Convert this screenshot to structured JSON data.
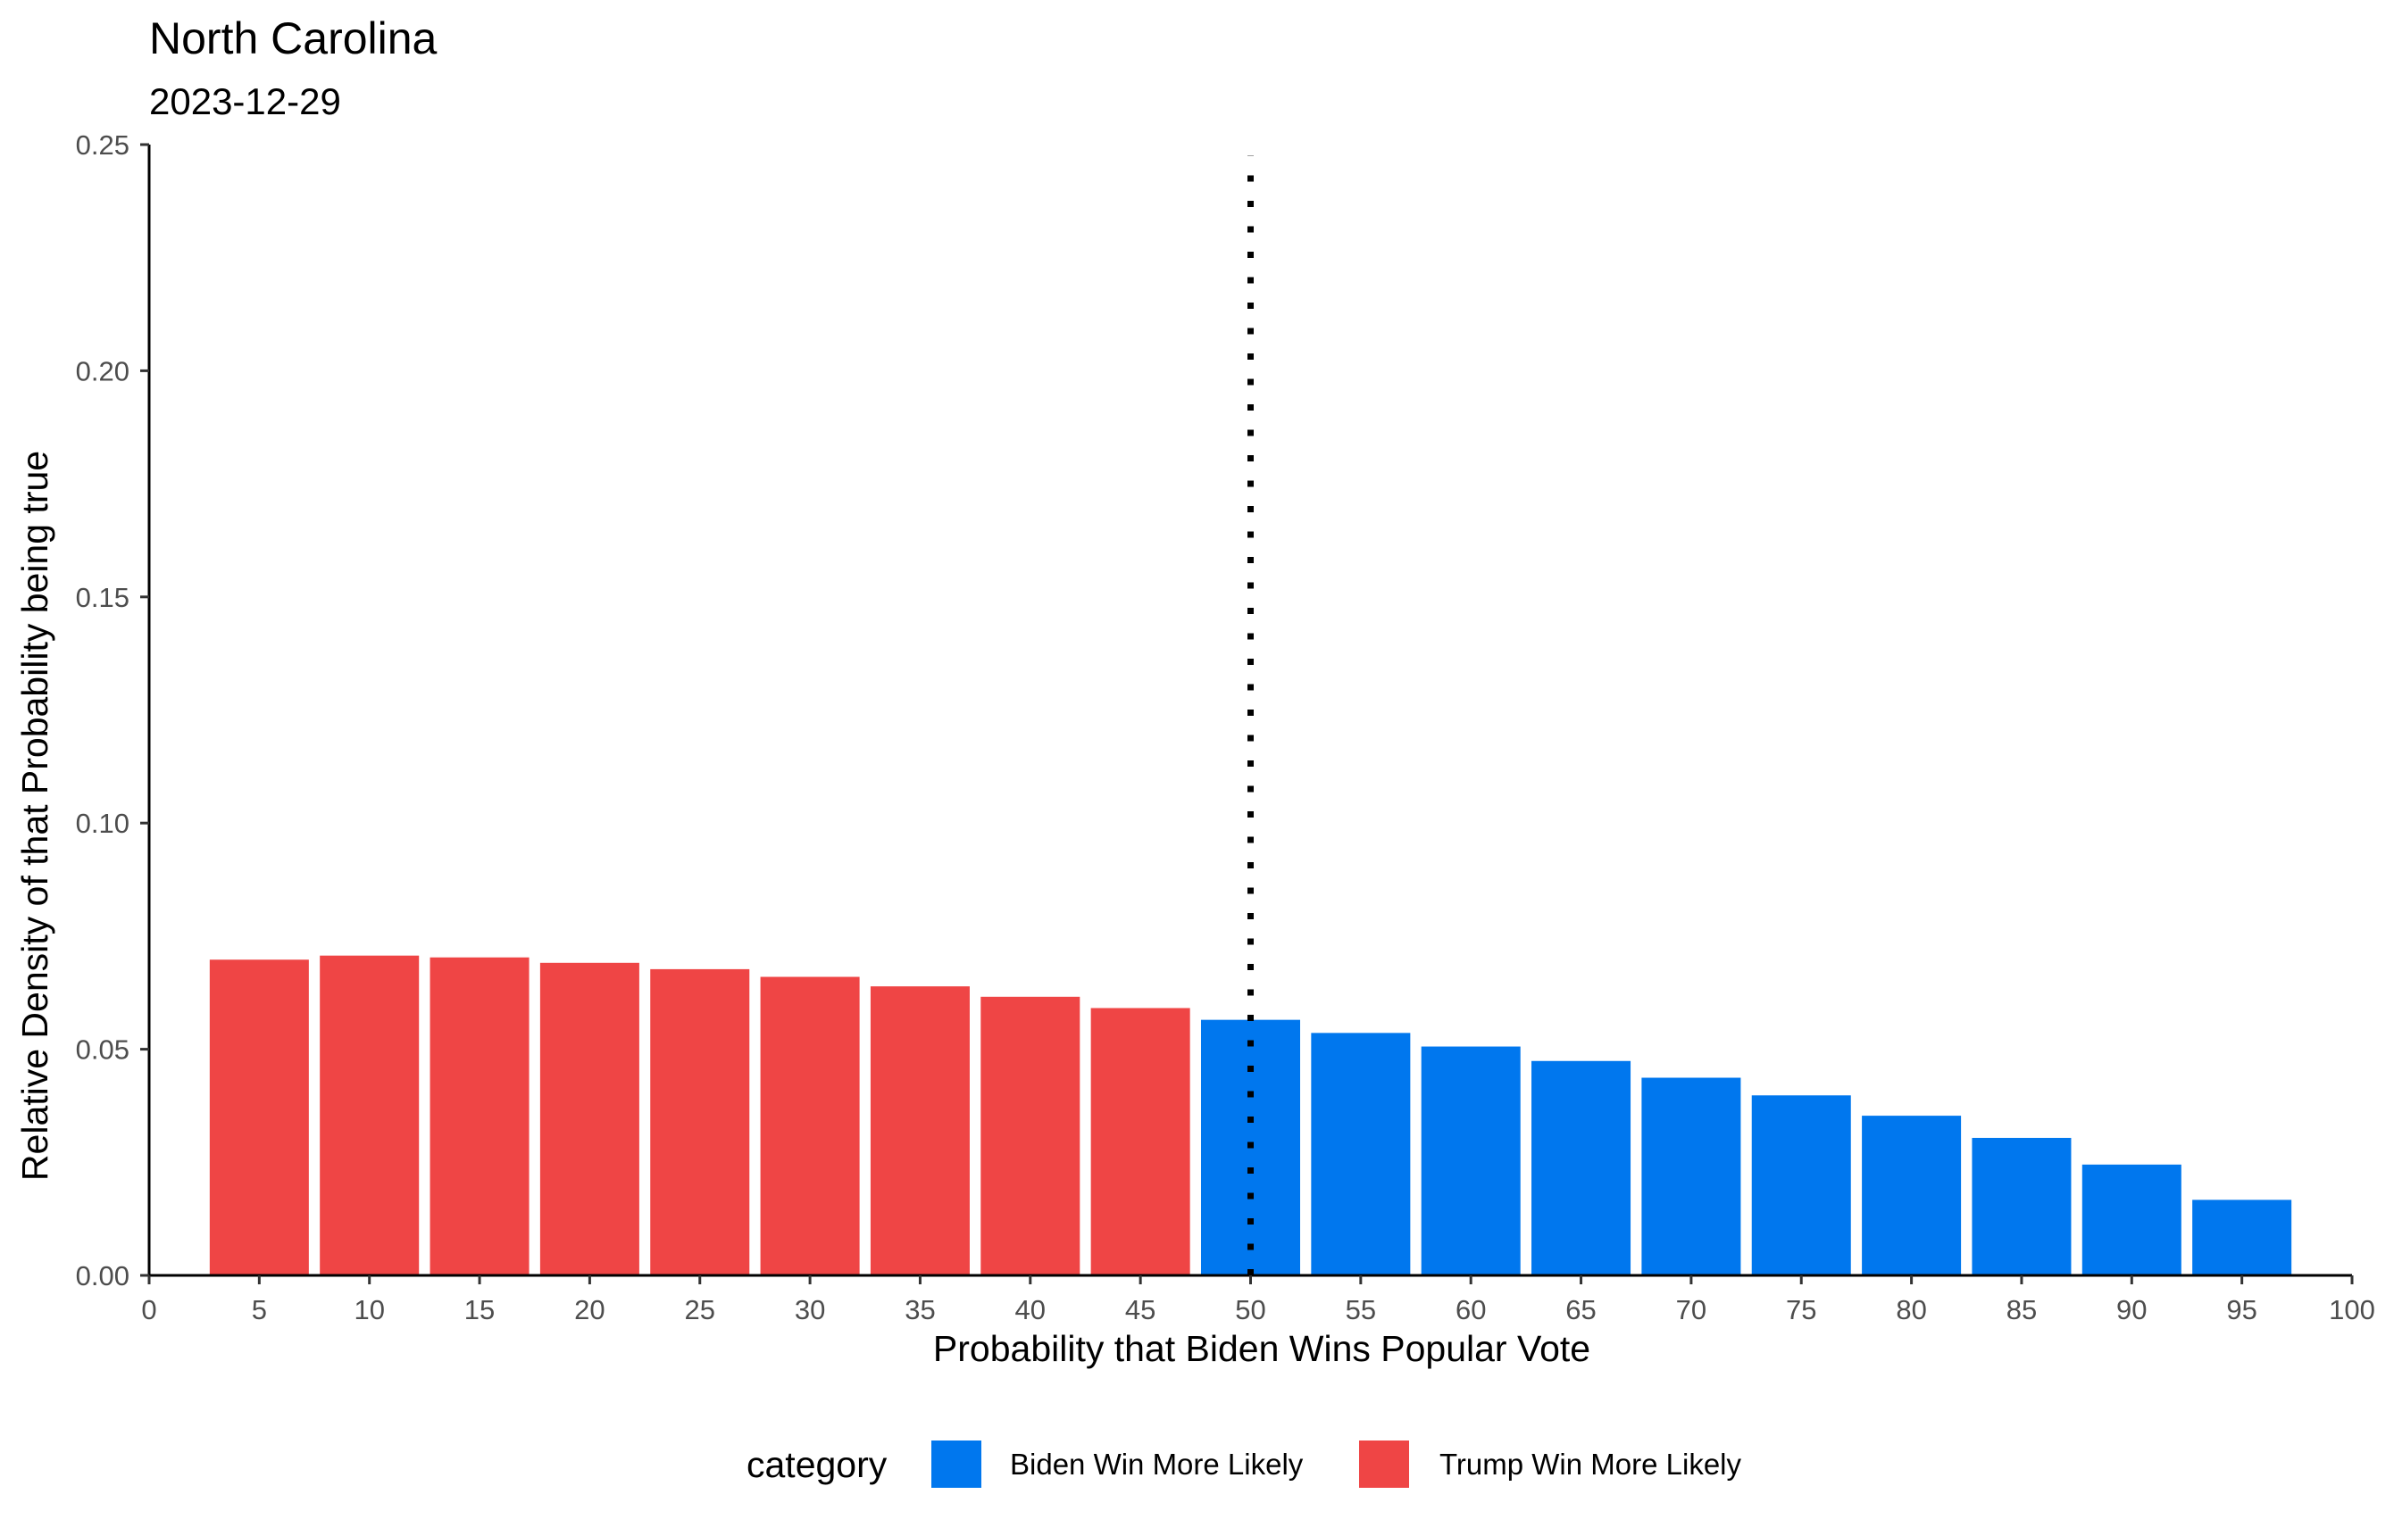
{
  "chart_data": {
    "type": "bar",
    "title": "North Carolina",
    "subtitle": "2023-12-29",
    "xlabel": "Probability that Biden Wins Popular Vote",
    "ylabel": "Relative Density of that Probability being true",
    "xlim": [
      0,
      100
    ],
    "ylim": [
      0,
      0.25
    ],
    "x_ticks": [
      "0",
      "5",
      "10",
      "15",
      "20",
      "25",
      "30",
      "35",
      "40",
      "45",
      "50",
      "55",
      "60",
      "65",
      "70",
      "75",
      "80",
      "85",
      "90",
      "95",
      "100"
    ],
    "y_ticks": [
      "0.00",
      "0.05",
      "0.10",
      "0.15",
      "0.20",
      "0.25"
    ],
    "grid": false,
    "reference_line": {
      "x": 50,
      "style": "dotted"
    },
    "legend": {
      "title": "category",
      "placement": "bottom",
      "entries": [
        {
          "label": "Biden Win More Likely",
          "color": "#0077EE"
        },
        {
          "label": "Trump Win More Likely",
          "color": "#EF4545"
        }
      ]
    },
    "bars": [
      {
        "x": 5,
        "value": 0.0698,
        "category": "Trump Win More Likely"
      },
      {
        "x": 10,
        "value": 0.0707,
        "category": "Trump Win More Likely"
      },
      {
        "x": 15,
        "value": 0.0703,
        "category": "Trump Win More Likely"
      },
      {
        "x": 20,
        "value": 0.0691,
        "category": "Trump Win More Likely"
      },
      {
        "x": 25,
        "value": 0.0677,
        "category": "Trump Win More Likely"
      },
      {
        "x": 30,
        "value": 0.066,
        "category": "Trump Win More Likely"
      },
      {
        "x": 35,
        "value": 0.0639,
        "category": "Trump Win More Likely"
      },
      {
        "x": 40,
        "value": 0.0616,
        "category": "Trump Win More Likely"
      },
      {
        "x": 45,
        "value": 0.0591,
        "category": "Trump Win More Likely"
      },
      {
        "x": 50,
        "value": 0.0565,
        "category": "Biden Win More Likely"
      },
      {
        "x": 55,
        "value": 0.0536,
        "category": "Biden Win More Likely"
      },
      {
        "x": 60,
        "value": 0.0506,
        "category": "Biden Win More Likely"
      },
      {
        "x": 65,
        "value": 0.0474,
        "category": "Biden Win More Likely"
      },
      {
        "x": 70,
        "value": 0.0437,
        "category": "Biden Win More Likely"
      },
      {
        "x": 75,
        "value": 0.0398,
        "category": "Biden Win More Likely"
      },
      {
        "x": 80,
        "value": 0.0353,
        "category": "Biden Win More Likely"
      },
      {
        "x": 85,
        "value": 0.0304,
        "category": "Biden Win More Likely"
      },
      {
        "x": 90,
        "value": 0.0245,
        "category": "Biden Win More Likely"
      },
      {
        "x": 95,
        "value": 0.0167,
        "category": "Biden Win More Likely"
      }
    ]
  }
}
